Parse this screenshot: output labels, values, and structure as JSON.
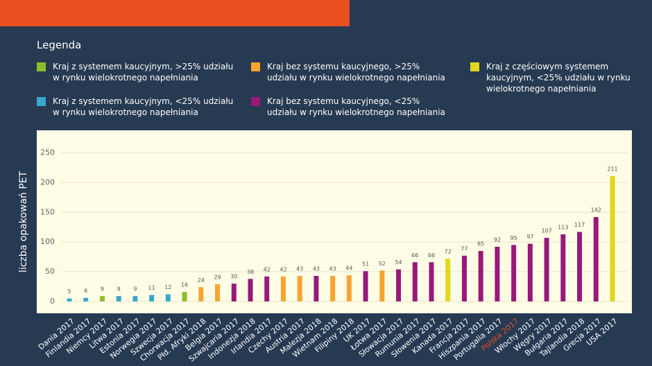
{
  "chart_data": {
    "type": "bar",
    "legend_title": "Legenda",
    "legend": [
      {
        "label": "Kraj z systemem kaucyjnym, >25% udziału w rynku wielokrotnego napełniania",
        "color": "#8cbf26"
      },
      {
        "label": "Kraj bez systemu kaucyjnego, >25% udziału w rynku wielokrotnego napełniania",
        "color": "#f7a530"
      },
      {
        "label": "Kraj z częściowym systemem kaucyjnym, <25% udziału w rynku wielokrotnego napełniania",
        "color": "#e2d81b"
      },
      {
        "label": "Kraj z systemem kaucyjnym, <25% udziału w rynku wielokrotnego napełniania",
        "color": "#3aa6cf"
      },
      {
        "label": "Kraj bez systemu kaucyjnego, <25% udziału w rynku wielokrotnego napełniania",
        "color": "#99197a"
      }
    ],
    "y_label": "liczba opakowań PET",
    "categories": [
      "Dania 2017",
      "Finlandia 2017",
      "Niemcy 2017",
      "Litwa 2017",
      "Estonia 2017",
      "Norwegia 2017",
      "Szwecja 2017",
      "Chorwacja 2017",
      "Płd. Afryki 2018",
      "Belgia 2017",
      "Szwajcaria 2017",
      "Indonezja 2018",
      "Irlandia 2017",
      "Czechy 2017",
      "Austria 2017",
      "Malezja 2018",
      "Wietnam 2018",
      "Filipiny 2018",
      "UK 2017",
      "Łotwa 2017",
      "Słowacja 2017",
      "Rumunia 2017",
      "Słowenia 2017",
      "Kanada 2017",
      "Francja 2017",
      "Hiszpania 2017",
      "Portugalia 2017",
      "Polska 2017",
      "Włochy 2017",
      "Węgry 2017",
      "Bułgaria 2017",
      "Tajlandia 2018",
      "Grecja 2017",
      "USA 2017"
    ],
    "values": [
      5,
      6,
      9,
      9,
      9,
      11,
      12,
      16,
      24,
      29,
      30,
      38,
      42,
      42,
      43,
      43,
      43,
      44,
      51,
      52,
      54,
      66,
      66,
      72,
      77,
      85,
      92,
      95,
      97,
      107,
      113,
      117,
      142,
      211
    ],
    "colors": [
      "#3aa6cf",
      "#3aa6cf",
      "#8cbf26",
      "#3aa6cf",
      "#3aa6cf",
      "#3aa6cf",
      "#3aa6cf",
      "#8cbf26",
      "#f7a530",
      "#f7a530",
      "#99197a",
      "#99197a",
      "#99197a",
      "#f7a530",
      "#f7a530",
      "#99197a",
      "#f7a530",
      "#f7a530",
      "#99197a",
      "#f7a530",
      "#99197a",
      "#99197a",
      "#99197a",
      "#e2d81b",
      "#99197a",
      "#99197a",
      "#99197a",
      "#99197a",
      "#99197a",
      "#99197a",
      "#99197a",
      "#99197a",
      "#99197a",
      "#e2d81b"
    ],
    "highlight": {
      "index": 27,
      "color": "#e8502a"
    },
    "ylim": [
      -20,
      288
    ],
    "yticks": [
      0,
      50,
      100,
      150,
      200,
      250
    ],
    "grid": true
  }
}
